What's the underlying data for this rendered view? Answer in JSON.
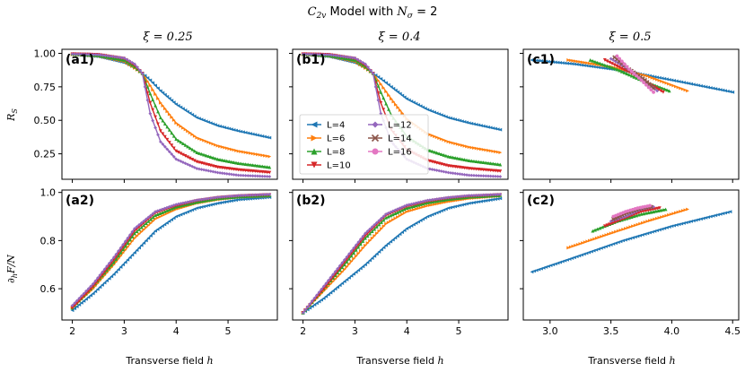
{
  "figure": {
    "title_prefix": "C",
    "title_sub": "2v",
    "title_middle": " Model with ",
    "title_var": "N",
    "title_var_sub": "σ",
    "title_suffix": " = 2"
  },
  "columns": [
    {
      "title": "ξ = 0.25"
    },
    {
      "title": "ξ = 0.4"
    },
    {
      "title": "ξ = 0.5"
    }
  ],
  "axes_text": {
    "ylabel_top": "R",
    "ylabel_top_sub": "S",
    "ylabel_bottom": "∂",
    "ylabel_bottom_sub": "h",
    "ylabel_bottom_rest": "F/N",
    "xlabel": "Transverse field",
    "xlabel_var": "h"
  },
  "legend": {
    "placement": "panel b1, lower-left",
    "entries": [
      {
        "label": "L=4",
        "marker": "triangle-left",
        "color": "#1f77b4"
      },
      {
        "label": "L=6",
        "marker": "triangle-right",
        "color": "#ff7f0e"
      },
      {
        "label": "L=8",
        "marker": "triangle-up",
        "color": "#2ca02c"
      },
      {
        "label": "L=10",
        "marker": "triangle-down",
        "color": "#d62728"
      },
      {
        "label": "L=12",
        "marker": "diamond",
        "color": "#9467bd"
      },
      {
        "label": "L=14",
        "marker": "x",
        "color": "#8c564b"
      },
      {
        "label": "L=16",
        "marker": "circle",
        "color": "#e377c2"
      }
    ]
  },
  "chart_data": [
    {
      "panel": "a1",
      "label": "(a1)",
      "type": "line",
      "xlim": [
        1.8,
        5.95
      ],
      "ylim": [
        0.06,
        1.03
      ],
      "xticks": [
        2,
        3,
        4,
        5
      ],
      "yticks": [
        0.25,
        0.5,
        0.75,
        1.0
      ],
      "xtick_labels": [
        "",
        "",
        "",
        ""
      ],
      "ytick_labels": [
        "0.25",
        "0.50",
        "0.75",
        "1.00"
      ],
      "series": [
        {
          "name": "L=4",
          "x": [
            2.0,
            2.5,
            3.0,
            3.2,
            3.35,
            3.5,
            3.7,
            4.0,
            4.4,
            4.8,
            5.2,
            5.8
          ],
          "y": [
            0.99,
            0.975,
            0.93,
            0.89,
            0.85,
            0.8,
            0.72,
            0.62,
            0.52,
            0.46,
            0.42,
            0.37
          ]
        },
        {
          "name": "L=6",
          "x": [
            2.0,
            2.5,
            3.0,
            3.2,
            3.35,
            3.5,
            3.7,
            4.0,
            4.4,
            4.8,
            5.2,
            5.8
          ],
          "y": [
            0.99,
            0.98,
            0.94,
            0.89,
            0.85,
            0.76,
            0.63,
            0.48,
            0.37,
            0.31,
            0.27,
            0.23
          ]
        },
        {
          "name": "L=8",
          "x": [
            2.0,
            2.5,
            3.0,
            3.2,
            3.35,
            3.5,
            3.7,
            4.0,
            4.4,
            4.8,
            5.2,
            5.8
          ],
          "y": [
            0.995,
            0.985,
            0.95,
            0.9,
            0.85,
            0.7,
            0.52,
            0.36,
            0.26,
            0.21,
            0.18,
            0.15
          ]
        },
        {
          "name": "L=10",
          "x": [
            2.0,
            2.5,
            3.0,
            3.2,
            3.35,
            3.5,
            3.7,
            4.0,
            4.4,
            4.8,
            5.2,
            5.8
          ],
          "y": [
            0.995,
            0.99,
            0.96,
            0.91,
            0.85,
            0.63,
            0.42,
            0.27,
            0.19,
            0.15,
            0.13,
            0.11
          ]
        },
        {
          "name": "L=12",
          "x": [
            2.0,
            2.5,
            3.0,
            3.2,
            3.35,
            3.5,
            3.7,
            4.0,
            4.4,
            4.8,
            5.2,
            5.8
          ],
          "y": [
            0.995,
            0.99,
            0.965,
            0.92,
            0.85,
            0.55,
            0.34,
            0.21,
            0.14,
            0.11,
            0.09,
            0.08
          ]
        }
      ]
    },
    {
      "panel": "b1",
      "label": "(b1)",
      "type": "line",
      "xlim": [
        1.8,
        5.95
      ],
      "ylim": [
        0.06,
        1.03
      ],
      "xticks": [
        2,
        3,
        4,
        5
      ],
      "yticks": [
        0.25,
        0.5,
        0.75,
        1.0
      ],
      "xtick_labels": [
        "",
        "",
        "",
        ""
      ],
      "ytick_labels": [
        "",
        "",
        "",
        ""
      ],
      "series": [
        {
          "name": "L=4",
          "x": [
            2.0,
            2.5,
            3.0,
            3.2,
            3.35,
            3.5,
            3.7,
            4.0,
            4.4,
            4.8,
            5.2,
            5.8
          ],
          "y": [
            0.99,
            0.975,
            0.93,
            0.89,
            0.85,
            0.81,
            0.75,
            0.66,
            0.58,
            0.52,
            0.48,
            0.43
          ]
        },
        {
          "name": "L=6",
          "x": [
            2.0,
            2.5,
            3.0,
            3.2,
            3.35,
            3.5,
            3.7,
            4.0,
            4.4,
            4.8,
            5.2,
            5.8
          ],
          "y": [
            0.99,
            0.98,
            0.94,
            0.89,
            0.85,
            0.77,
            0.66,
            0.51,
            0.4,
            0.34,
            0.3,
            0.26
          ]
        },
        {
          "name": "L=8",
          "x": [
            2.0,
            2.5,
            3.0,
            3.2,
            3.35,
            3.5,
            3.7,
            4.0,
            4.4,
            4.8,
            5.2,
            5.8
          ],
          "y": [
            0.995,
            0.985,
            0.95,
            0.9,
            0.85,
            0.71,
            0.54,
            0.38,
            0.28,
            0.23,
            0.2,
            0.17
          ]
        },
        {
          "name": "L=10",
          "x": [
            2.0,
            2.5,
            3.0,
            3.2,
            3.35,
            3.5,
            3.7,
            4.0,
            4.4,
            4.8,
            5.2,
            5.8
          ],
          "y": [
            0.995,
            0.99,
            0.96,
            0.91,
            0.85,
            0.63,
            0.43,
            0.28,
            0.2,
            0.16,
            0.14,
            0.12
          ]
        },
        {
          "name": "L=12",
          "x": [
            2.0,
            2.5,
            3.0,
            3.2,
            3.35,
            3.5,
            3.7,
            4.0,
            4.4,
            4.8,
            5.2,
            5.8
          ],
          "y": [
            0.995,
            0.99,
            0.965,
            0.92,
            0.85,
            0.55,
            0.34,
            0.21,
            0.14,
            0.11,
            0.09,
            0.08
          ]
        }
      ]
    },
    {
      "panel": "c1",
      "label": "(c1)",
      "type": "line",
      "xlim": [
        2.78,
        4.55
      ],
      "ylim": [
        0.06,
        1.03
      ],
      "xticks": [
        3.0,
        3.5,
        4.0,
        4.5
      ],
      "yticks": [
        0.25,
        0.5,
        0.75,
        1.0
      ],
      "xtick_labels": [
        "",
        "",
        "",
        ""
      ],
      "ytick_labels": [
        "",
        "",
        "",
        ""
      ],
      "series": [
        {
          "name": "L=4",
          "x": [
            2.85,
            3.2,
            3.6,
            4.0,
            4.5
          ],
          "y": [
            0.95,
            0.92,
            0.87,
            0.8,
            0.71
          ]
        },
        {
          "name": "L=6",
          "x": [
            3.15,
            3.5,
            3.8,
            4.13
          ],
          "y": [
            0.95,
            0.9,
            0.83,
            0.72
          ]
        },
        {
          "name": "L=8",
          "x": [
            3.33,
            3.55,
            3.75,
            3.98
          ],
          "y": [
            0.95,
            0.88,
            0.8,
            0.72
          ]
        },
        {
          "name": "L=10",
          "x": [
            3.45,
            3.65,
            3.8,
            3.93
          ],
          "y": [
            0.95,
            0.86,
            0.78,
            0.71
          ]
        },
        {
          "name": "L=12",
          "x": [
            3.5,
            3.65,
            3.8,
            3.88
          ],
          "y": [
            0.96,
            0.88,
            0.78,
            0.72
          ]
        },
        {
          "name": "L=14",
          "x": [
            3.53,
            3.65,
            3.78,
            3.85
          ],
          "y": [
            0.97,
            0.88,
            0.8,
            0.74
          ]
        },
        {
          "name": "L=16",
          "x": [
            3.55,
            3.65,
            3.75,
            3.85
          ],
          "y": [
            0.98,
            0.88,
            0.8,
            0.71
          ]
        }
      ]
    },
    {
      "panel": "a2",
      "label": "(a2)",
      "type": "line",
      "xlim": [
        1.8,
        5.95
      ],
      "ylim": [
        0.47,
        1.01
      ],
      "xticks": [
        2,
        3,
        4,
        5
      ],
      "yticks": [
        0.6,
        0.8,
        1.0
      ],
      "xtick_labels": [
        "2",
        "3",
        "4",
        "5"
      ],
      "ytick_labels": [
        "0.6",
        "0.8",
        "1.0"
      ],
      "series": [
        {
          "name": "L=4",
          "x": [
            2.0,
            2.4,
            2.8,
            3.2,
            3.6,
            4.0,
            4.4,
            4.8,
            5.2,
            5.8
          ],
          "y": [
            0.51,
            0.58,
            0.66,
            0.75,
            0.84,
            0.9,
            0.935,
            0.955,
            0.97,
            0.98
          ]
        },
        {
          "name": "L=6",
          "x": [
            2.0,
            2.4,
            2.8,
            3.2,
            3.6,
            4.0,
            4.4,
            4.8,
            5.2,
            5.8
          ],
          "y": [
            0.52,
            0.6,
            0.7,
            0.81,
            0.89,
            0.93,
            0.955,
            0.97,
            0.98,
            0.985
          ]
        },
        {
          "name": "L=8",
          "x": [
            2.0,
            2.4,
            2.8,
            3.2,
            3.6,
            4.0,
            4.4,
            4.8,
            5.2,
            5.8
          ],
          "y": [
            0.52,
            0.61,
            0.71,
            0.83,
            0.905,
            0.94,
            0.96,
            0.975,
            0.982,
            0.988
          ]
        },
        {
          "name": "L=10",
          "x": [
            2.0,
            2.4,
            2.8,
            3.2,
            3.6,
            4.0,
            4.4,
            4.8,
            5.2,
            5.8
          ],
          "y": [
            0.52,
            0.61,
            0.72,
            0.84,
            0.915,
            0.945,
            0.965,
            0.978,
            0.985,
            0.99
          ]
        },
        {
          "name": "L=12",
          "x": [
            2.0,
            2.4,
            2.8,
            3.2,
            3.6,
            4.0,
            4.4,
            4.8,
            5.2,
            5.8
          ],
          "y": [
            0.53,
            0.62,
            0.73,
            0.85,
            0.92,
            0.95,
            0.968,
            0.98,
            0.987,
            0.992
          ]
        }
      ]
    },
    {
      "panel": "b2",
      "label": "(b2)",
      "type": "line",
      "xlim": [
        1.8,
        5.95
      ],
      "ylim": [
        0.47,
        1.01
      ],
      "xticks": [
        2,
        3,
        4,
        5
      ],
      "yticks": [
        0.6,
        0.8,
        1.0
      ],
      "xtick_labels": [
        "2",
        "3",
        "4",
        "5"
      ],
      "ytick_labels": [
        "",
        "",
        ""
      ],
      "series": [
        {
          "name": "L=4",
          "x": [
            2.0,
            2.4,
            2.8,
            3.2,
            3.6,
            4.0,
            4.4,
            4.8,
            5.2,
            5.8
          ],
          "y": [
            0.5,
            0.56,
            0.63,
            0.7,
            0.78,
            0.85,
            0.9,
            0.935,
            0.955,
            0.975
          ]
        },
        {
          "name": "L=6",
          "x": [
            2.0,
            2.4,
            2.8,
            3.2,
            3.6,
            4.0,
            4.4,
            4.8,
            5.2,
            5.8
          ],
          "y": [
            0.5,
            0.59,
            0.68,
            0.78,
            0.87,
            0.92,
            0.945,
            0.962,
            0.975,
            0.985
          ]
        },
        {
          "name": "L=8",
          "x": [
            2.0,
            2.4,
            2.8,
            3.2,
            3.6,
            4.0,
            4.4,
            4.8,
            5.2,
            5.8
          ],
          "y": [
            0.5,
            0.6,
            0.7,
            0.81,
            0.895,
            0.935,
            0.958,
            0.972,
            0.981,
            0.988
          ]
        },
        {
          "name": "L=10",
          "x": [
            2.0,
            2.4,
            2.8,
            3.2,
            3.6,
            4.0,
            4.4,
            4.8,
            5.2,
            5.8
          ],
          "y": [
            0.5,
            0.6,
            0.71,
            0.82,
            0.905,
            0.942,
            0.963,
            0.976,
            0.984,
            0.99
          ]
        },
        {
          "name": "L=12",
          "x": [
            2.0,
            2.4,
            2.8,
            3.2,
            3.6,
            4.0,
            4.4,
            4.8,
            5.2,
            5.8
          ],
          "y": [
            0.5,
            0.61,
            0.72,
            0.83,
            0.91,
            0.947,
            0.967,
            0.979,
            0.987,
            0.992
          ]
        }
      ]
    },
    {
      "panel": "c2",
      "label": "(c2)",
      "type": "line",
      "xlim": [
        2.78,
        4.55
      ],
      "ylim": [
        0.47,
        1.01
      ],
      "xticks": [
        3.0,
        3.5,
        4.0,
        4.5
      ],
      "yticks": [
        0.6,
        0.8,
        1.0
      ],
      "xtick_labels": [
        "3.0",
        "3.5",
        "4.0",
        "4.5"
      ],
      "ytick_labels": [
        "",
        "",
        ""
      ],
      "series": [
        {
          "name": "L=4",
          "x": [
            2.85,
            3.2,
            3.6,
            4.0,
            4.48
          ],
          "y": [
            0.67,
            0.73,
            0.8,
            0.86,
            0.92
          ]
        },
        {
          "name": "L=6",
          "x": [
            3.15,
            3.5,
            3.8,
            4.13
          ],
          "y": [
            0.77,
            0.83,
            0.88,
            0.93
          ]
        },
        {
          "name": "L=8",
          "x": [
            3.35,
            3.55,
            3.75,
            3.95
          ],
          "y": [
            0.84,
            0.88,
            0.91,
            0.93
          ]
        },
        {
          "name": "L=10",
          "x": [
            3.45,
            3.6,
            3.75,
            3.9
          ],
          "y": [
            0.86,
            0.89,
            0.92,
            0.935
          ]
        },
        {
          "name": "L=12",
          "x": [
            3.5,
            3.62,
            3.75,
            3.85
          ],
          "y": [
            0.88,
            0.9,
            0.93,
            0.94
          ]
        },
        {
          "name": "L=14",
          "x": [
            3.52,
            3.63,
            3.75,
            3.83
          ],
          "y": [
            0.89,
            0.915,
            0.935,
            0.94
          ]
        },
        {
          "name": "L=16",
          "x": [
            3.52,
            3.62,
            3.72,
            3.82
          ],
          "y": [
            0.9,
            0.92,
            0.935,
            0.945
          ]
        }
      ]
    }
  ]
}
